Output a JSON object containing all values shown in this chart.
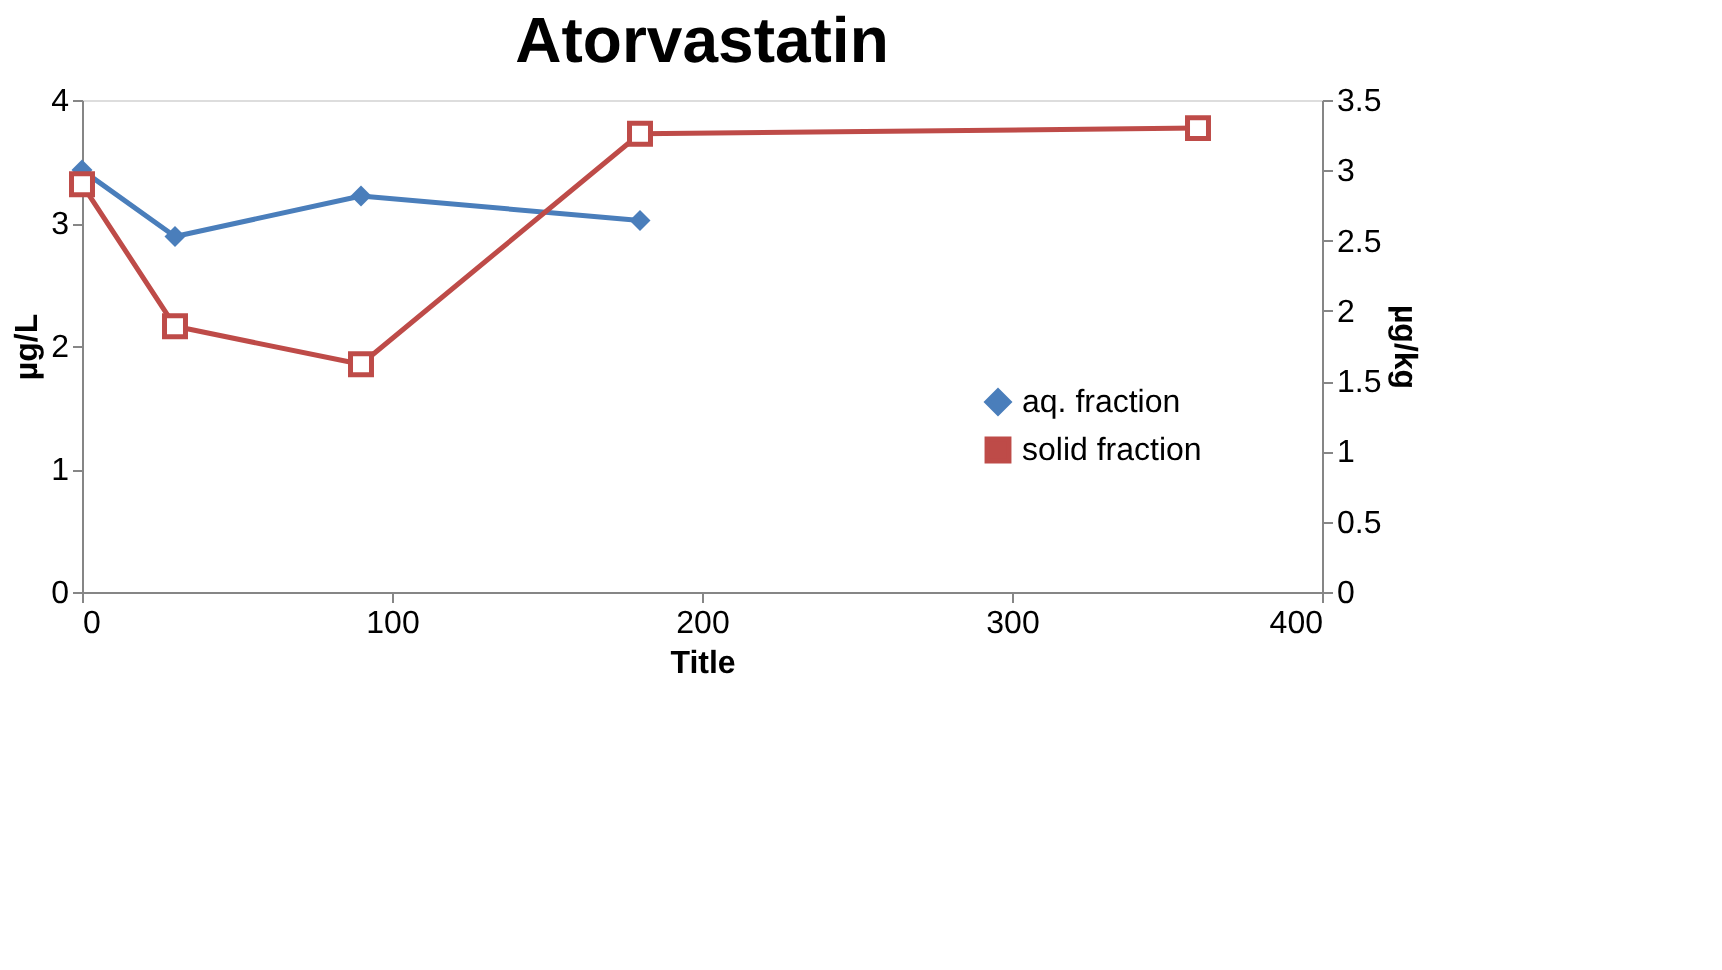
{
  "chart_data": {
    "type": "line",
    "title": "Atorvastatin",
    "xlabel": "Title",
    "ylabel": "µg/L",
    "y2label": "µg/kg",
    "xlim": [
      0,
      400
    ],
    "xticks": [
      0,
      100,
      200,
      300,
      400
    ],
    "ylim": [
      0,
      4
    ],
    "yticks": [
      0,
      1,
      2,
      3,
      4
    ],
    "y2lim": [
      0,
      3.5
    ],
    "y2ticks": [
      0,
      0.5,
      1,
      1.5,
      2,
      2.5,
      3,
      3.5
    ],
    "grid": false,
    "legend": "right",
    "series": [
      {
        "name": "aq. fraction",
        "color": "#4a7ebb",
        "marker": "diamond",
        "x": [
          0,
          30,
          90,
          180
        ],
        "values": [
          3.43,
          2.89,
          3.22,
          3.02
        ]
      },
      {
        "name": "solid fraction",
        "color": "#be4b48",
        "marker": "square",
        "axis": "y2",
        "x": [
          0,
          30,
          90,
          180,
          360
        ],
        "values": [
          2.9,
          1.89,
          1.62,
          3.26,
          3.3
        ]
      }
    ]
  }
}
